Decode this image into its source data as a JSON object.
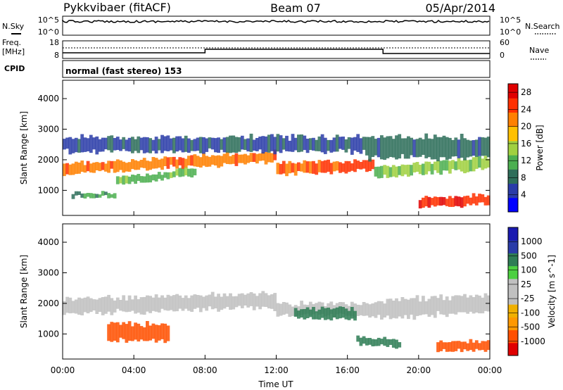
{
  "header": {
    "station": "Pykkvibaer (fitACF)",
    "beam": "Beam 07",
    "date": "05/Apr/2014"
  },
  "strips": {
    "nsky_label": "N.Sky",
    "nsky_ticks": [
      "10^5",
      "10^0"
    ],
    "nsearch_label": "N.Search",
    "nsearch_ticks": [
      "10^5",
      "10^0"
    ],
    "freq_label": "Freq.",
    "freq_unit": "[MHz]",
    "freq_ticks": [
      "18",
      "8"
    ],
    "nave_label": "Nave",
    "nave_ticks": [
      "60",
      "0"
    ],
    "cpid_label": "CPID",
    "cpid_text": "normal (fast stereo) 153"
  },
  "colors": {
    "power_scale": [
      "#0000ff",
      "#2a3ca8",
      "#2e6e5a",
      "#4caf50",
      "#a0d040",
      "#ffc000",
      "#ff8000",
      "#ff3000",
      "#e00000"
    ],
    "velocity_scale": [
      "#e00000",
      "#ff5000",
      "#ff9800",
      "#f0b000",
      "#c0c0c0",
      "#c0c0c0",
      "#4cd040",
      "#2e7d55",
      "#2a3ca8",
      "#1a1ab0"
    ]
  },
  "chart_data": [
    {
      "type": "heatmap",
      "name": "power",
      "xlabel": "",
      "ylabel": "Slant Range [km]",
      "yticks": [
        "1000",
        "2000",
        "3000",
        "4000"
      ],
      "ylim": [
        180,
        4600
      ],
      "xticks": [
        "00:00",
        "04:00",
        "08:00",
        "12:00",
        "16:00",
        "20:00",
        "00:00"
      ],
      "xlim_hours": [
        0,
        24
      ],
      "colorbar": {
        "label": "Power [dB]",
        "ticks": [
          "4",
          "8",
          "12",
          "16",
          "20",
          "24",
          "28"
        ],
        "range": [
          0,
          30
        ]
      },
      "bands": [
        {
          "t": [
            0.0,
            12.0
          ],
          "center_start": 1700,
          "center_end": 2100,
          "width": 350,
          "level": 22
        },
        {
          "t": [
            3.0,
            7.5
          ],
          "center_start": 1300,
          "center_end": 1600,
          "width": 250,
          "level": 12
        },
        {
          "t": [
            0.5,
            3.0
          ],
          "center_start": 850,
          "center_end": 850,
          "width": 150,
          "level": 10
        },
        {
          "t": [
            12.0,
            17.5
          ],
          "center_start": 1700,
          "center_end": 1800,
          "width": 350,
          "level": 24
        },
        {
          "t": [
            17.5,
            24.0
          ],
          "center_start": 1600,
          "center_end": 1900,
          "width": 400,
          "level": 14
        },
        {
          "t": [
            20.0,
            24.0
          ],
          "center_start": 600,
          "center_end": 700,
          "width": 300,
          "level": 26
        },
        {
          "t": [
            0.0,
            17.0
          ],
          "center_start": 2500,
          "center_end": 2500,
          "width": 500,
          "level": 6
        },
        {
          "t": [
            17.0,
            24.0
          ],
          "center_start": 2400,
          "center_end": 2400,
          "width": 700,
          "level": 8
        }
      ]
    },
    {
      "type": "heatmap",
      "name": "velocity",
      "xlabel": "Time UT",
      "ylabel": "Slant Range [km]",
      "yticks": [
        "1000",
        "2000",
        "3000",
        "4000"
      ],
      "ylim": [
        180,
        4600
      ],
      "xticks": [
        "00:00",
        "04:00",
        "08:00",
        "12:00",
        "16:00",
        "20:00",
        "00:00"
      ],
      "xlim_hours": [
        0,
        24
      ],
      "colorbar": {
        "label": "Velocity [m s^-1]",
        "ticks": [
          "1000",
          "500",
          "100",
          "25",
          "-25",
          "-100",
          "-500",
          "-1000"
        ]
      },
      "bands": [
        {
          "t": [
            0.0,
            12.0
          ],
          "center_start": 1900,
          "center_end": 2100,
          "width": 500,
          "level": 0
        },
        {
          "t": [
            12.0,
            17.5
          ],
          "center_start": 1800,
          "center_end": 1800,
          "width": 400,
          "level": 0
        },
        {
          "t": [
            17.5,
            24.0
          ],
          "center_start": 1800,
          "center_end": 2000,
          "width": 600,
          "level": 0
        },
        {
          "t": [
            2.5,
            6.0
          ],
          "center_start": 1050,
          "center_end": 1050,
          "width": 600,
          "level": -150
        },
        {
          "t": [
            13.0,
            16.5
          ],
          "center_start": 1650,
          "center_end": 1650,
          "width": 350,
          "level": 300
        },
        {
          "t": [
            16.5,
            19.0
          ],
          "center_start": 800,
          "center_end": 700,
          "width": 250,
          "level": 300
        },
        {
          "t": [
            21.0,
            24.0
          ],
          "center_start": 600,
          "center_end": 600,
          "width": 300,
          "level": -400
        }
      ]
    }
  ]
}
